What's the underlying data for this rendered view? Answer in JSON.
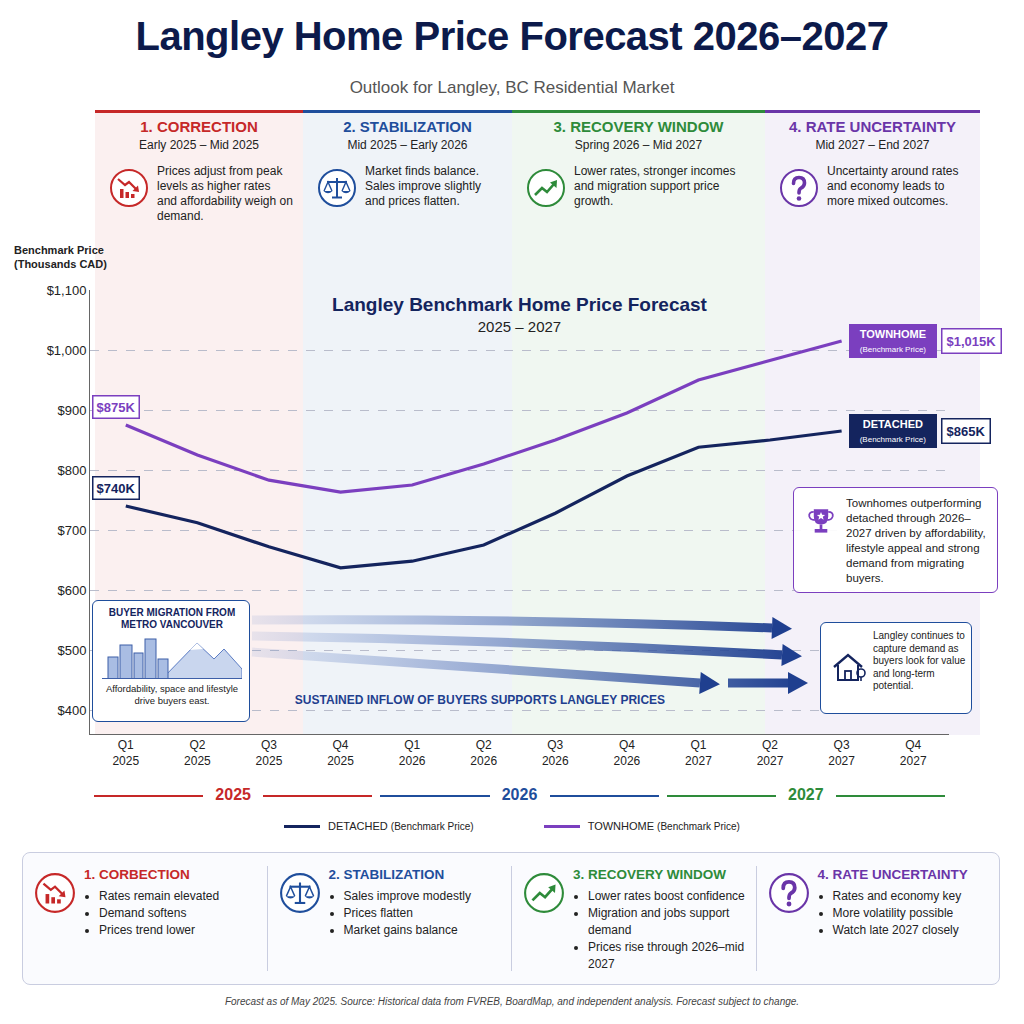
{
  "header": {
    "title": "Langley Home Price Forecast 2026–2027",
    "subtitle": "Outlook for Langley, BC Residential Market"
  },
  "phases": [
    {
      "title": "1. CORRECTION",
      "period": "Early 2025 – Mid 2025",
      "text": "Prices adjust from peak levels as higher rates and affordability weigh on demand.",
      "color": "#c62828"
    },
    {
      "title": "2. STABILIZATION",
      "period": "Mid 2025 – Early 2026",
      "text": "Market finds balance. Sales improve slightly and prices flatten.",
      "color": "#1f4e9c"
    },
    {
      "title": "3. RECOVERY WINDOW",
      "period": "Spring 2026 – Mid 2027",
      "text": "Lower rates, stronger incomes and migration support price growth.",
      "color": "#2e8b3a"
    },
    {
      "title": "4. RATE UNCERTAINTY",
      "period": "Mid 2027 – End 2027",
      "text": "Uncertainty around rates and economy leads to more mixed outcomes.",
      "color": "#6a35a8"
    }
  ],
  "chart_data": {
    "type": "line",
    "title": "Langley Benchmark Home Price Forecast",
    "subtitle": "2025 – 2027",
    "y_label": "Benchmark Price (Thousands CAD)",
    "categories": [
      "Q1 2025",
      "Q2 2025",
      "Q3 2025",
      "Q4 2025",
      "Q1 2026",
      "Q2 2026",
      "Q3 2026",
      "Q4 2026",
      "Q1 2027",
      "Q2 2027",
      "Q3 2027",
      "Q4 2027"
    ],
    "series": [
      {
        "name": "DETACHED",
        "name_note": "(Benchmark Price)",
        "color": "#14245e",
        "line_style": "solid",
        "values": [
          740,
          712,
          672,
          637,
          648,
          675,
          728,
          790,
          838,
          850,
          865,
          null
        ],
        "value_labels": [
          "$740K",
          null,
          null,
          null,
          null,
          null,
          null,
          null,
          null,
          null,
          "$865K",
          null
        ]
      },
      {
        "name": "TOWNHOME",
        "name_note": "(Benchmark Price)",
        "color": "#7b3fbf",
        "line_style": "solid",
        "values": [
          875,
          825,
          783,
          763,
          775,
          810,
          850,
          895,
          950,
          982,
          1015,
          null
        ],
        "value_labels": [
          "$875K",
          null,
          null,
          null,
          null,
          null,
          null,
          null,
          null,
          null,
          "$1,015K",
          null
        ]
      }
    ],
    "ylim": [
      360,
      1100
    ],
    "yticks": [
      {
        "value": 400,
        "label": "$400"
      },
      {
        "value": 500,
        "label": "$500"
      },
      {
        "value": 600,
        "label": "$600"
      },
      {
        "value": 700,
        "label": "$700"
      },
      {
        "value": 800,
        "label": "$800"
      },
      {
        "value": 900,
        "label": "$900"
      },
      {
        "value": 1000,
        "label": "$1,000"
      },
      {
        "value": 1100,
        "label": "$1,100"
      }
    ],
    "grid": true,
    "legend": "bottom",
    "year_labels": [
      {
        "label": "2025",
        "color": "#c62828"
      },
      {
        "label": "2026",
        "color": "#1f4e9c"
      },
      {
        "label": "2027",
        "color": "#2e8b3a"
      }
    ]
  },
  "callouts": {
    "outperform": "Townhomes outperforming detached through 2026–2027 driven by affordability, lifestyle appeal and strong demand from migrating buyers.",
    "migration_title": "BUYER MIGRATION FROM METRO VANCOUVER",
    "migration_text": "Affordability, space and lifestyle drive buyers east.",
    "inflow": "SUSTAINED INFLOW OF BUYERS SUPPORTS LANGLEY PRICES",
    "capture": "Langley continues to capture demand as buyers look for value and long-term potential."
  },
  "summary": [
    {
      "title": "1. CORBECTION",
      "bullets": [
        "Rates remain elevated",
        "Demand softens",
        "Prices trend lower"
      ]
    },
    {
      "title": "2. STABILIZATION",
      "bullets": [
        "Sales improve modestly",
        "Prices flatten",
        "Market gains balance"
      ]
    },
    {
      "title": "3. RECOVERY WINDOW",
      "bullets": [
        "Lower rates boost confidence",
        "Migration and jobs support demand",
        "Prices rise through 2026–mid 2027"
      ]
    },
    {
      "title": "4. RATE UNCERTAINTY",
      "bullets": [
        "Rates and economy key",
        "More volatility possible",
        "Watch late 2027 closely"
      ]
    }
  ],
  "footer": "Forecast as of May 2025. Source: Historical data from FVREB, BoardMap, and independent analysis. Forecast subject to change."
}
